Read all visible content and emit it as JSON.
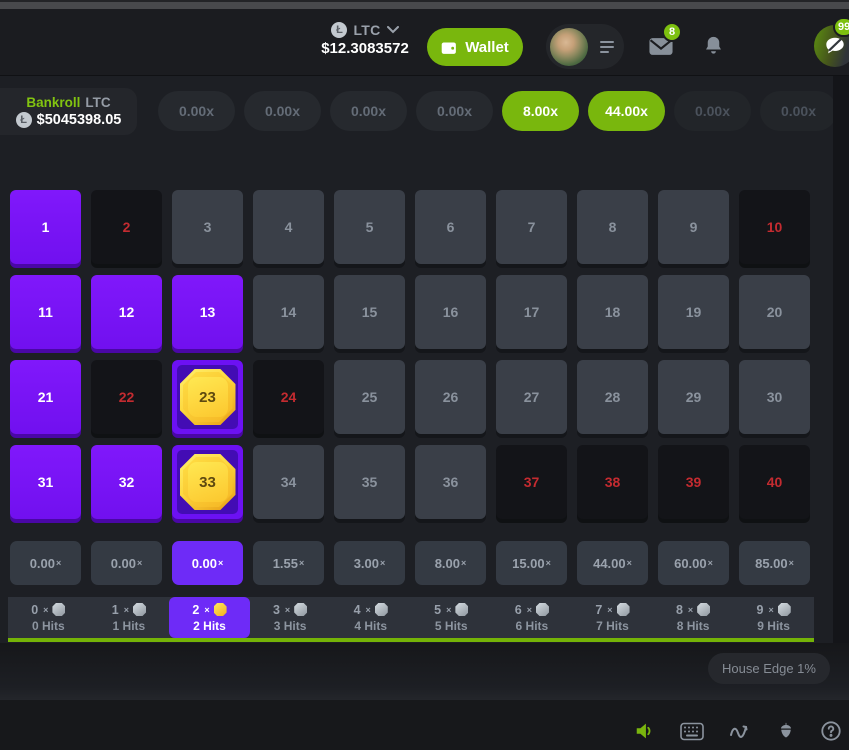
{
  "header": {
    "coin_symbol": "Ł",
    "currency_code": "LTC",
    "balance": "$12.3083572",
    "wallet_label": "Wallet",
    "mail_badge": "8",
    "chat_badge": "99"
  },
  "bankroll": {
    "label": "Bankroll",
    "currency": "LTC",
    "coin_symbol": "Ł",
    "amount": "$5045398.05"
  },
  "round_multipliers": [
    {
      "label": "0.00x",
      "state": "idle"
    },
    {
      "label": "0.00x",
      "state": "idle"
    },
    {
      "label": "0.00x",
      "state": "idle"
    },
    {
      "label": "0.00x",
      "state": "idle"
    },
    {
      "label": "8.00x",
      "state": "win"
    },
    {
      "label": "44.00x",
      "state": "win"
    },
    {
      "label": "0.00x",
      "state": "off"
    },
    {
      "label": "0.00x",
      "state": "off"
    }
  ],
  "keno_grid": {
    "rows": 4,
    "cols": 10,
    "cells": [
      {
        "n": "1",
        "state": "selected"
      },
      {
        "n": "2",
        "state": "miss"
      },
      {
        "n": "3",
        "state": "idle"
      },
      {
        "n": "4",
        "state": "idle"
      },
      {
        "n": "5",
        "state": "idle"
      },
      {
        "n": "6",
        "state": "idle"
      },
      {
        "n": "7",
        "state": "idle"
      },
      {
        "n": "8",
        "state": "idle"
      },
      {
        "n": "9",
        "state": "idle"
      },
      {
        "n": "10",
        "state": "miss"
      },
      {
        "n": "11",
        "state": "selected"
      },
      {
        "n": "12",
        "state": "selected"
      },
      {
        "n": "13",
        "state": "selected"
      },
      {
        "n": "14",
        "state": "idle"
      },
      {
        "n": "15",
        "state": "idle"
      },
      {
        "n": "16",
        "state": "idle"
      },
      {
        "n": "17",
        "state": "idle"
      },
      {
        "n": "18",
        "state": "idle"
      },
      {
        "n": "19",
        "state": "idle"
      },
      {
        "n": "20",
        "state": "idle"
      },
      {
        "n": "21",
        "state": "selected"
      },
      {
        "n": "22",
        "state": "miss"
      },
      {
        "n": "23",
        "state": "hit"
      },
      {
        "n": "24",
        "state": "miss"
      },
      {
        "n": "25",
        "state": "idle"
      },
      {
        "n": "26",
        "state": "idle"
      },
      {
        "n": "27",
        "state": "idle"
      },
      {
        "n": "28",
        "state": "idle"
      },
      {
        "n": "29",
        "state": "idle"
      },
      {
        "n": "30",
        "state": "idle"
      },
      {
        "n": "31",
        "state": "selected"
      },
      {
        "n": "32",
        "state": "selected"
      },
      {
        "n": "33",
        "state": "hit"
      },
      {
        "n": "34",
        "state": "idle"
      },
      {
        "n": "35",
        "state": "idle"
      },
      {
        "n": "36",
        "state": "idle"
      },
      {
        "n": "37",
        "state": "miss"
      },
      {
        "n": "38",
        "state": "miss"
      },
      {
        "n": "39",
        "state": "miss"
      },
      {
        "n": "40",
        "state": "miss"
      }
    ]
  },
  "mult_symbol": "×",
  "payout_row": [
    {
      "label": "0.00",
      "selected": false
    },
    {
      "label": "0.00",
      "selected": false
    },
    {
      "label": "0.00",
      "selected": true
    },
    {
      "label": "1.55",
      "selected": false
    },
    {
      "label": "3.00",
      "selected": false
    },
    {
      "label": "8.00",
      "selected": false
    },
    {
      "label": "15.00",
      "selected": false
    },
    {
      "label": "44.00",
      "selected": false
    },
    {
      "label": "60.00",
      "selected": false
    },
    {
      "label": "85.00",
      "selected": false
    }
  ],
  "hits_row": [
    {
      "mult": "0",
      "gem": "gray",
      "label": "0 Hits",
      "selected": false
    },
    {
      "mult": "1",
      "gem": "gray",
      "label": "1 Hits",
      "selected": false
    },
    {
      "mult": "2",
      "gem": "gold",
      "label": "2 Hits",
      "selected": true
    },
    {
      "mult": "3",
      "gem": "gray",
      "label": "3 Hits",
      "selected": false
    },
    {
      "mult": "4",
      "gem": "gray",
      "label": "4 Hits",
      "selected": false
    },
    {
      "mult": "5",
      "gem": "gray",
      "label": "5 Hits",
      "selected": false
    },
    {
      "mult": "6",
      "gem": "gray",
      "label": "6 Hits",
      "selected": false
    },
    {
      "mult": "7",
      "gem": "gray",
      "label": "7 Hits",
      "selected": false
    },
    {
      "mult": "8",
      "gem": "gray",
      "label": "8 Hits",
      "selected": false
    },
    {
      "mult": "9",
      "gem": "gray",
      "label": "9 Hits",
      "selected": false
    }
  ],
  "house_edge_label": "House Edge 1%",
  "icons": [
    "litecoin-coin-icon",
    "chevron-down-icon",
    "wallet-icon",
    "menu-icon",
    "mail-icon",
    "bell-icon",
    "chat-muted-icon",
    "gem-icon",
    "volume-icon",
    "hotkeys-icon",
    "live-stats-icon",
    "seed-icon",
    "help-icon"
  ],
  "colors": {
    "accent_green": "#79b70d",
    "accent_purple": "#7110ef",
    "miss_red": "#c42b30",
    "gem_gold": "#fcc72e"
  }
}
